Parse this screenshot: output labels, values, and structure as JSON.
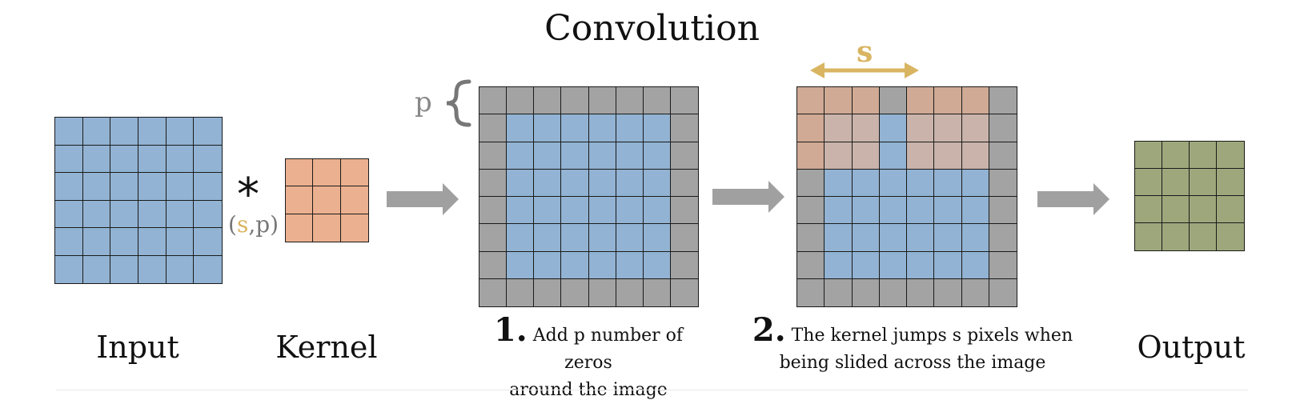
{
  "title": "Convolution",
  "colors": {
    "input": "#92b3d3",
    "kernel": "#ebb08f",
    "padding": "#a3a3a3",
    "kernel_overlay": "#d0aa95",
    "kernel_overlay_light": "#c9b3aa",
    "output": "#9ea77c",
    "stride": "#d9b562",
    "arrow": "#a0a0a0",
    "grid_line": "#1a1a1a"
  },
  "grids": {
    "input": {
      "rows": 6,
      "cols": 6
    },
    "kernel": {
      "rows": 3,
      "cols": 3
    },
    "padded": {
      "rows": 8,
      "cols": 8,
      "padding": 1
    },
    "strided": {
      "rows": 8,
      "cols": 8,
      "padding": 1,
      "kernel_positions": [
        {
          "row": 0,
          "col": 0
        },
        {
          "row": 0,
          "col": 4
        }
      ]
    },
    "output": {
      "rows": 4,
      "cols": 4
    }
  },
  "operator": {
    "symbol": "*",
    "open": "(",
    "s": "s",
    "comma": ",",
    "p": "p",
    "close": ")"
  },
  "padding_label": "p",
  "stride_label": "s",
  "labels": {
    "input": "Input",
    "kernel": "Kernel",
    "output": "Output"
  },
  "steps": [
    {
      "number": "1.",
      "line1": "Add p number of zeros",
      "line2": "around the image"
    },
    {
      "number": "2.",
      "line1": "The kernel jumps s pixels when",
      "line2": "being slided across the image"
    }
  ],
  "icons": [
    "arrow-right-icon",
    "brace-icon",
    "double-arrow-icon"
  ]
}
